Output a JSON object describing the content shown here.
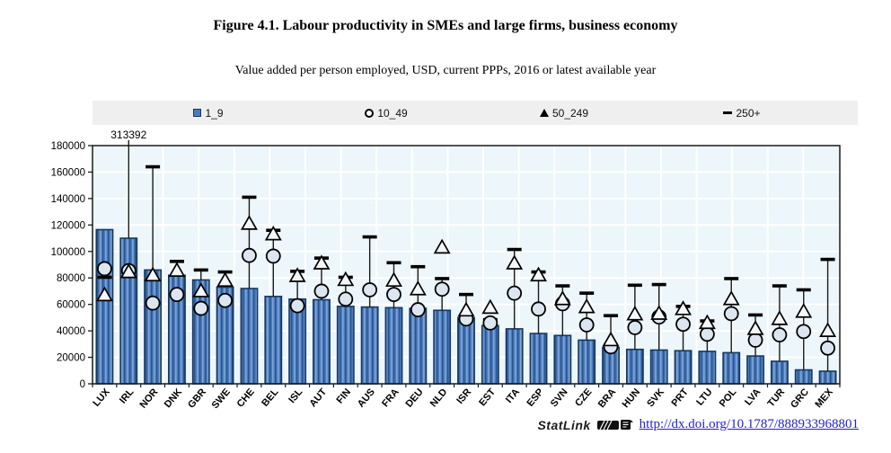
{
  "chart_data": {
    "type": "bar",
    "title": "Figure 4.1. Labour productivity in SMEs and large firms, business economy",
    "subtitle": "Value added per person employed, USD, current PPPs, 2016 or latest available year",
    "categories": [
      "LUX",
      "IRL",
      "NOR",
      "DNK",
      "GBR",
      "SWE",
      "CHE",
      "BEL",
      "ISL",
      "AUT",
      "FIN",
      "AUS",
      "FRA",
      "DEU",
      "NLD",
      "ISR",
      "EST",
      "ITA",
      "ESP",
      "SVN",
      "CZE",
      "BRA",
      "HUN",
      "SVK",
      "PRT",
      "LTU",
      "POL",
      "LVA",
      "TUR",
      "GRC",
      "MEX"
    ],
    "series": [
      {
        "name": "1_9",
        "marker": "bar",
        "values": [
          116500,
          110000,
          86000,
          82000,
          78500,
          73000,
          72000,
          66000,
          64000,
          63500,
          58500,
          58000,
          57500,
          57000,
          55500,
          50000,
          44000,
          41500,
          38000,
          36500,
          33000,
          27500,
          26000,
          25500,
          25000,
          24500,
          23500,
          21000,
          17000,
          10500,
          9500
        ]
      },
      {
        "name": "10_49",
        "marker": "circle",
        "values": [
          87000,
          85500,
          61000,
          67500,
          57000,
          63000,
          97000,
          96500,
          59000,
          70000,
          64000,
          71000,
          67500,
          56000,
          71500,
          49000,
          46000,
          68500,
          56500,
          60500,
          44500,
          28000,
          42500,
          50500,
          45000,
          37500,
          53000,
          33000,
          37000,
          39500,
          27000
        ]
      },
      {
        "name": "50_249",
        "marker": "triangle",
        "values": [
          67000,
          84500,
          82000,
          85500,
          70000,
          78000,
          121000,
          113000,
          81500,
          91000,
          78500,
          null,
          78000,
          71500,
          103000,
          55500,
          57500,
          91000,
          82000,
          64000,
          58000,
          33000,
          52500,
          53000,
          56500,
          46000,
          64000,
          41500,
          49000,
          54500,
          40000
        ]
      },
      {
        "name": "250+",
        "marker": "dash",
        "values": [
          80500,
          313392,
          164000,
          92500,
          86000,
          84500,
          141000,
          116000,
          85000,
          95000,
          80500,
          111000,
          91500,
          88500,
          79500,
          67500,
          48500,
          101500,
          84500,
          74000,
          68500,
          51500,
          74500,
          75000,
          58500,
          47500,
          79500,
          52000,
          74000,
          71000,
          94000
        ]
      }
    ],
    "ylim": [
      0,
      180000
    ],
    "ytick_step": 20000,
    "grid": true,
    "legend_position": "top",
    "annotations": [
      {
        "text": "313392",
        "category": "IRL"
      }
    ],
    "colors": {
      "bar_fill": "#4a7cbd",
      "bar_stripe_dark": "#2a5490",
      "bar_stripe_light": "#7fa3d4",
      "bar_border": "#17375e",
      "circle_fill": "#dce6f1",
      "triangle_fill": "#f4f8fc",
      "marker_stroke": "#000000",
      "whisker": "#1a1a1a",
      "plot_bg": "#ecf6fb",
      "gridline": "#ffffff",
      "axis": "#1a1a1a",
      "legend_bg": "#efefef",
      "link": "#2222cc"
    }
  },
  "footer": {
    "statlink_label": "StatLink",
    "url": "http://dx.doi.org/10.1787/888933968801"
  }
}
